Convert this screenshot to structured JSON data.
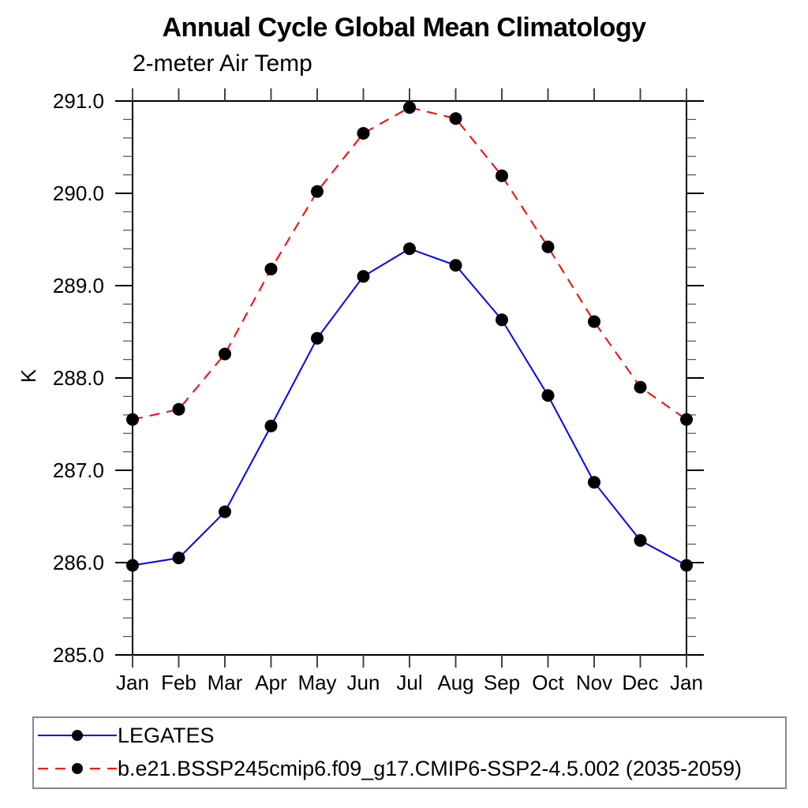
{
  "title": "Annual Cycle Global Mean Climatology",
  "chart_data": {
    "type": "line",
    "title": "Annual Cycle Global Mean Climatology",
    "subtitle": "2-meter Air Temp",
    "ylabel": "K",
    "xlabel": "",
    "categories": [
      "Jan",
      "Feb",
      "Mar",
      "Apr",
      "May",
      "Jun",
      "Jul",
      "Aug",
      "Sep",
      "Oct",
      "Nov",
      "Dec",
      "Jan"
    ],
    "ylim": [
      285.0,
      291.0
    ],
    "ytick_step": 1.0,
    "ytick_minor_step": 0.2,
    "ytick_labels": [
      "285.0",
      "286.0",
      "287.0",
      "288.0",
      "289.0",
      "290.0",
      "291.0"
    ],
    "grid": false,
    "legend_position": "bottom",
    "marker": "filled-circle",
    "marker_color": "#000000",
    "series": [
      {
        "name": "LEGATES",
        "color": "#0000ff",
        "style": "solid",
        "values": [
          285.97,
          286.05,
          286.55,
          287.48,
          288.43,
          289.1,
          289.4,
          289.22,
          288.63,
          287.81,
          286.87,
          286.24,
          285.97
        ]
      },
      {
        "name": "b.e21.BSSP245cmip6.f09_g17.CMIP6-SSP2-4.5.002 (2035-2059)",
        "color": "#ff0000",
        "style": "dashed",
        "values": [
          287.55,
          287.66,
          288.26,
          289.18,
          290.02,
          290.65,
          290.93,
          290.81,
          290.19,
          289.42,
          288.61,
          287.9,
          287.55
        ]
      }
    ]
  }
}
